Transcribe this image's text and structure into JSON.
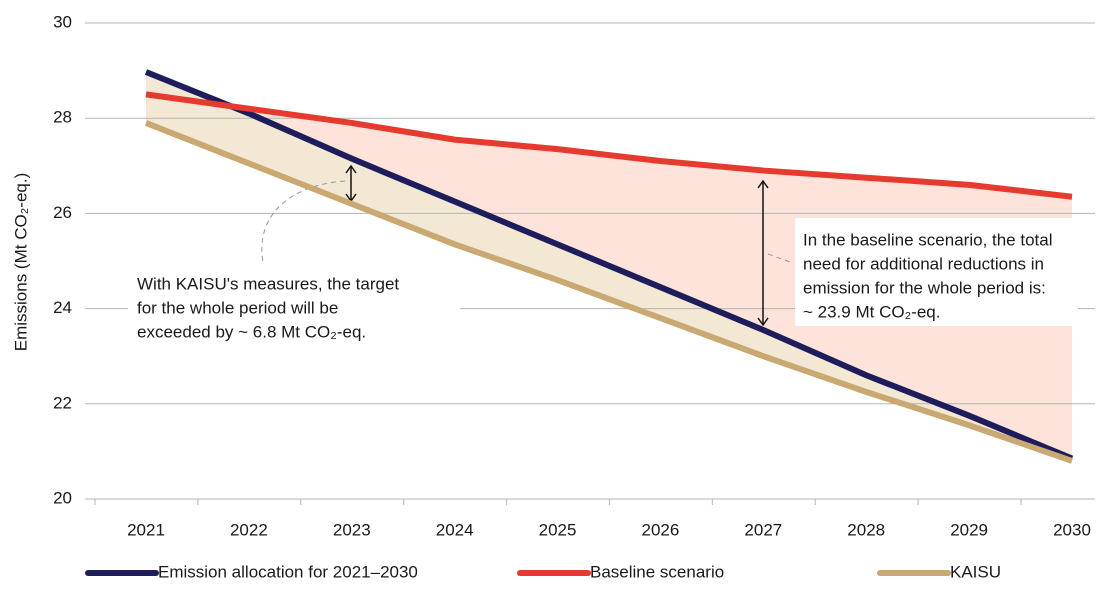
{
  "chart_data": {
    "type": "line",
    "y_label": "Emissions (Mt CO₂-eq.)",
    "categories": [
      "2021",
      "2022",
      "2023",
      "2024",
      "2025",
      "2026",
      "2027",
      "2028",
      "2029",
      "2030"
    ],
    "ylim": [
      20,
      30
    ],
    "yticks": [
      20,
      22,
      24,
      26,
      28,
      30
    ],
    "grid": true,
    "legend": "bottom",
    "series": [
      {
        "name": "Emission allocation for 2021–2030",
        "color": "#1e1d5c",
        "values": [
          28.97,
          28.1,
          27.15,
          26.25,
          25.35,
          24.45,
          23.55,
          22.6,
          21.75,
          20.85
        ]
      },
      {
        "name": "Baseline scenario",
        "color": "#e63a2e",
        "values": [
          28.5,
          28.2,
          27.9,
          27.55,
          27.35,
          27.1,
          26.9,
          26.75,
          26.6,
          26.35
        ]
      },
      {
        "name": "KAISU",
        "color": "#c9a872",
        "values": [
          27.9,
          27.05,
          26.2,
          25.35,
          24.6,
          23.8,
          23.0,
          22.25,
          21.55,
          20.8
        ]
      }
    ],
    "annotations": [
      {
        "lines": [
          "With KAISU's measures, the target",
          "for the whole period will be",
          "exceeded by ~ 6.8 Mt CO₂-eq."
        ]
      },
      {
        "lines": [
          "In the baseline scenario, the total",
          "need for additional reductions in",
          "emission for the whole period is:",
          "~ 23.9 Mt CO₂-eq."
        ]
      }
    ]
  }
}
